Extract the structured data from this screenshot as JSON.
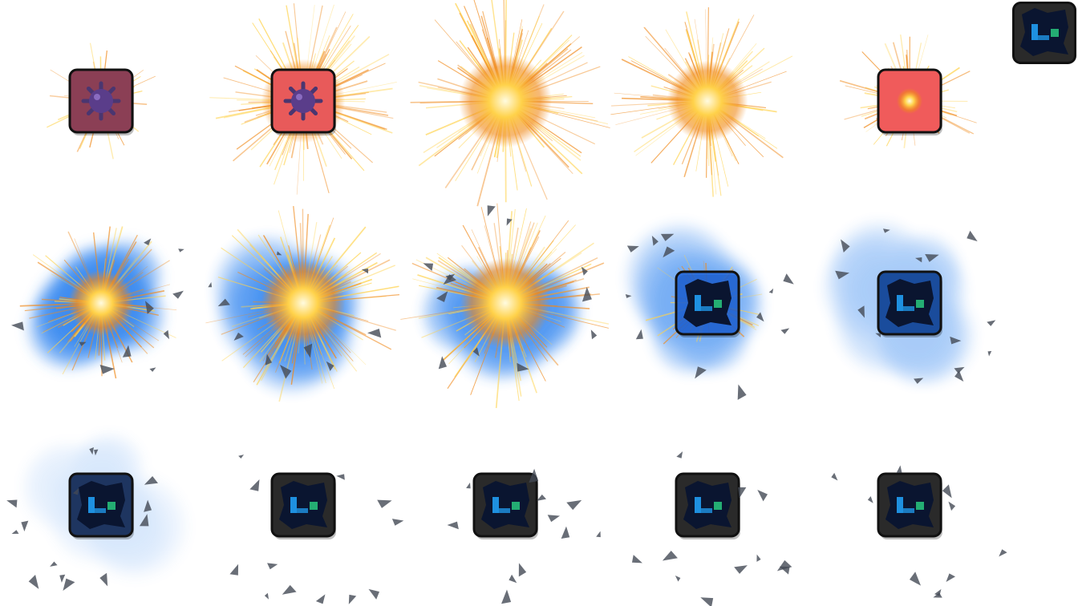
{
  "sprite_sheet": {
    "grid": {
      "rows": 3,
      "columns": 5
    },
    "frames": [
      {
        "index": 0,
        "tile": "mine",
        "tile_color": "#8b3f55",
        "fire": 0.15,
        "smoke": 0.0,
        "debris": 0
      },
      {
        "index": 1,
        "tile": "mine",
        "tile_color": "#e85a5a",
        "fire": 0.85,
        "smoke": 0.0,
        "debris": 0
      },
      {
        "index": 2,
        "tile": "none",
        "tile_color": "#e85a5a",
        "fire": 1.0,
        "smoke": 0.0,
        "debris": 0
      },
      {
        "index": 3,
        "tile": "none",
        "tile_color": "#e85a5a",
        "fire": 0.8,
        "smoke": 0.0,
        "debris": 0
      },
      {
        "index": 4,
        "tile": "flash",
        "tile_color": "#f05b5b",
        "fire": 0.35,
        "smoke": 0.0,
        "debris": 0
      },
      {
        "index": 5,
        "tile": "none",
        "tile_color": "#1d6fe0",
        "fire": 0.55,
        "smoke": 1.0,
        "debris": 10
      },
      {
        "index": 6,
        "tile": "none",
        "tile_color": "#1d6fe0",
        "fire": 0.85,
        "smoke": 0.95,
        "debris": 10
      },
      {
        "index": 7,
        "tile": "none",
        "tile_color": "#1d6fe0",
        "fire": 0.95,
        "smoke": 0.9,
        "debris": 12
      },
      {
        "index": 8,
        "tile": "blue",
        "tile_color": "#1e64d8",
        "fire": 0.2,
        "smoke": 0.7,
        "debris": 12
      },
      {
        "index": 9,
        "tile": "crater",
        "tile_color": "#1a4c9c",
        "fire": 0.0,
        "smoke": 0.45,
        "debris": 14
      },
      {
        "index": 10,
        "tile": "crater",
        "tile_color": "#1e3560",
        "fire": 0.0,
        "smoke": 0.2,
        "debris": 14
      },
      {
        "index": 11,
        "tile": "crater",
        "tile_color": "#2a2a2a",
        "fire": 0.0,
        "smoke": 0.0,
        "debris": 14
      },
      {
        "index": 12,
        "tile": "crater",
        "tile_color": "#2a2a2a",
        "fire": 0.0,
        "smoke": 0.0,
        "debris": 12
      },
      {
        "index": 13,
        "tile": "crater",
        "tile_color": "#2a2a2a",
        "fire": 0.0,
        "smoke": 0.0,
        "debris": 12
      },
      {
        "index": 14,
        "tile": "crater",
        "tile_color": "#2a2a2a",
        "fire": 0.0,
        "smoke": 0.0,
        "debris": 10
      }
    ],
    "preview_tile": {
      "tile": "crater",
      "tile_color": "#2a2a2a"
    },
    "colors": {
      "fire_core": "#fffbe0",
      "fire_mid": "#ffd24a",
      "fire_outer": "#f08a1c",
      "smoke": "#3d8cf0",
      "tile_border": "#111111",
      "crater_glow": "#22a6ff",
      "debris": "#444a55"
    }
  }
}
